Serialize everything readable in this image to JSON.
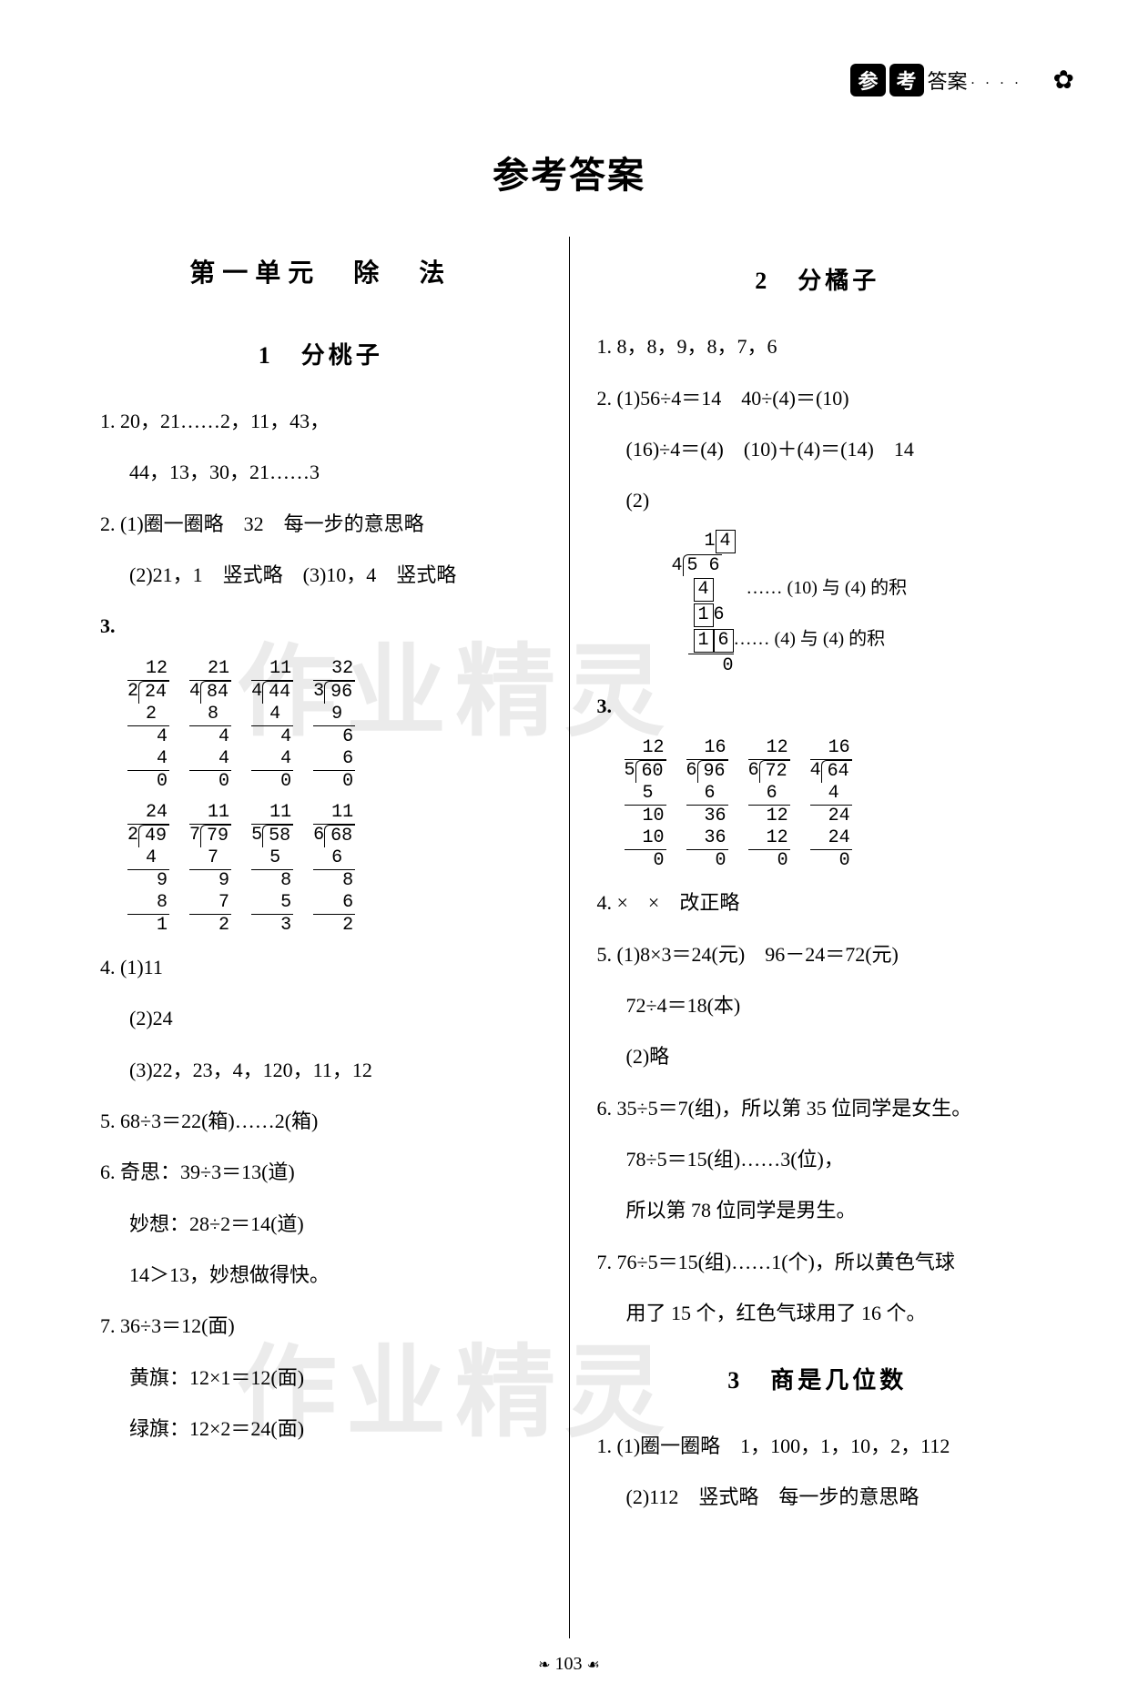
{
  "header": {
    "badge1": "参",
    "badge2": "考",
    "label": "答案"
  },
  "title": "参考答案",
  "watermark": "作业精灵",
  "page_number": "103",
  "left": {
    "unit_title": "第一单元　除　法",
    "s1": {
      "title": "1　分桃子",
      "q1a": "1. 20，21……2，11，43，",
      "q1b": "44，13，30，21……3",
      "q2a": "2. (1)圈一圈略　32　每一步的意思略",
      "q2b": "(2)21，1　竖式略　(3)10，4　竖式略",
      "q3_label": "3.",
      "ld_a": [
        {
          "q": "12",
          "d": "2",
          "n": "24",
          "s": [
            "2",
            "4",
            "4",
            "0"
          ]
        },
        {
          "q": "21",
          "d": "4",
          "n": "84",
          "s": [
            "8",
            "4",
            "4",
            "0"
          ]
        },
        {
          "q": "11",
          "d": "4",
          "n": "44",
          "s": [
            "4",
            "4",
            "4",
            "0"
          ]
        },
        {
          "q": "32",
          "d": "3",
          "n": "96",
          "s": [
            "9",
            "6",
            "6",
            "0"
          ]
        }
      ],
      "ld_b": [
        {
          "q": "24",
          "d": "2",
          "n": "49",
          "s": [
            "4",
            "9",
            "8",
            "1"
          ]
        },
        {
          "q": "11",
          "d": "7",
          "n": "79",
          "s": [
            "7",
            "9",
            "7",
            "2"
          ]
        },
        {
          "q": "11",
          "d": "5",
          "n": "58",
          "s": [
            "5",
            "8",
            "5",
            "3"
          ]
        },
        {
          "q": "11",
          "d": "6",
          "n": "68",
          "s": [
            "6",
            "8",
            "6",
            "2"
          ]
        }
      ],
      "q4a": "4. (1)11",
      "q4b": "(2)24",
      "q4c": "(3)22，23，4，120，11，12",
      "q5": "5. 68÷3＝22(箱)……2(箱)",
      "q6a": "6. 奇思：39÷3＝13(道)",
      "q6b": "妙想：28÷2＝14(道)",
      "q6c": "14＞13，妙想做得快。",
      "q7a": "7. 36÷3＝12(面)",
      "q7b": "黄旗：12×1＝12(面)",
      "q7c": "绿旗：12×2＝24(面)"
    }
  },
  "right": {
    "s2": {
      "title": "2　分橘子",
      "q1": "1. 8，8，9，8，7，6",
      "q2a": "2. (1)56÷4＝14　40÷(4)＝(10)",
      "q2b": "(16)÷4＝(4)　(10)＋(4)＝(14)　14",
      "q2c_label": "(2)",
      "q2c_note1": "…… (10) 与 (4) 的积",
      "q2c_note2": "…… (4) 与 (4) 的积",
      "q3_label": "3.",
      "ld": [
        {
          "q": "12",
          "d": "5",
          "n": "60",
          "s": [
            "5",
            "10",
            "10",
            "0"
          ]
        },
        {
          "q": "16",
          "d": "6",
          "n": "96",
          "s": [
            "6",
            "36",
            "36",
            "0"
          ]
        },
        {
          "q": "12",
          "d": "6",
          "n": "72",
          "s": [
            "6",
            "12",
            "12",
            "0"
          ]
        },
        {
          "q": "16",
          "d": "4",
          "n": "64",
          "s": [
            "4",
            "24",
            "24",
            "0"
          ]
        }
      ],
      "q4": "4. ×　×　改正略",
      "q5a": "5. (1)8×3＝24(元)　96－24＝72(元)",
      "q5b": "72÷4＝18(本)",
      "q5c": "(2)略",
      "q6a": "6. 35÷5＝7(组)，所以第 35 位同学是女生。",
      "q6b": "78÷5＝15(组)……3(位)，",
      "q6c": "所以第 78 位同学是男生。",
      "q7a": "7. 76÷5＝15(组)……1(个)，所以黄色气球",
      "q7b": "用了 15 个，红色气球用了 16 个。"
    },
    "s3": {
      "title": "3　商是几位数",
      "q1a": "1. (1)圈一圈略　1，100，1，10，2，112",
      "q1b": "(2)112　竖式略　每一步的意思略"
    }
  }
}
